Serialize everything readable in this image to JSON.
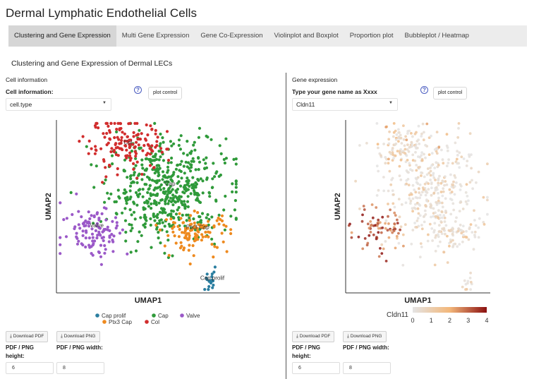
{
  "app": {
    "title": "Dermal Lymphatic Endothelial Cells"
  },
  "tabs": [
    {
      "label": "Clustering and Gene Expression",
      "active": true
    },
    {
      "label": "Multi Gene Expression",
      "active": false
    },
    {
      "label": "Gene Co-Expression",
      "active": false
    },
    {
      "label": "Violinplot and Boxplot",
      "active": false
    },
    {
      "label": "Proportion plot",
      "active": false
    },
    {
      "label": "Bubbleplot / Heatmap",
      "active": false
    }
  ],
  "section_title": "Clustering and Gene Expression of Dermal LECs",
  "left_panel": {
    "heading": "Cell information",
    "select_label": "Cell information:",
    "select_value": "cell.type",
    "help_symbol": "?",
    "plot_control_label": "plot control",
    "download_pdf": "Download PDF",
    "download_png": "Download PNG",
    "height_label": "PDF / PNG height:",
    "width_label": "PDF / PNG width:",
    "height_value": "6",
    "width_value": "8"
  },
  "right_panel": {
    "heading": "Gene expression",
    "select_label": "Type your gene name as Xxxx",
    "select_value": "Cldn11",
    "help_symbol": "?",
    "plot_control_label": "plot control",
    "download_pdf": "Download PDF",
    "download_png": "Download PNG",
    "height_label": "PDF / PNG height:",
    "width_label": "PDF / PNG width:",
    "height_value": "6",
    "width_value": "8"
  },
  "chart_data": [
    {
      "type": "scatter",
      "title": "",
      "xlabel": "UMAP1",
      "ylabel": "UMAP2",
      "xlim": [
        0,
        10
      ],
      "ylim": [
        0,
        10
      ],
      "legend_position": "bottom",
      "clusters": [
        {
          "name": "Cap prolif",
          "color": "#2a7ea0",
          "center": [
            8.4,
            0.6
          ],
          "spread": [
            0.25,
            0.3
          ],
          "count": 18,
          "label_pos": [
            8.5,
            0.75
          ]
        },
        {
          "name": "Cap",
          "color": "#2f9a3a",
          "center": [
            6.0,
            6.0
          ],
          "spread": [
            1.6,
            1.5
          ],
          "count": 520,
          "label_pos": [
            6.2,
            6.2
          ]
        },
        {
          "name": "Col",
          "color": "#d12d2d",
          "center": [
            3.8,
            8.5
          ],
          "spread": [
            1.1,
            0.7
          ],
          "count": 150,
          "label_pos": [
            3.9,
            8.6
          ]
        },
        {
          "name": "Ptx3 Cap",
          "color": "#ee8a1f",
          "center": [
            7.6,
            3.5
          ],
          "spread": [
            0.9,
            0.55
          ],
          "count": 110,
          "label_pos": [
            7.7,
            3.7
          ]
        },
        {
          "name": "Valve",
          "color": "#9b59c8",
          "center": [
            2.1,
            3.6
          ],
          "spread": [
            0.9,
            0.75
          ],
          "count": 110,
          "label_pos": [
            2.2,
            3.8
          ]
        }
      ]
    },
    {
      "type": "scatter",
      "title": "",
      "xlabel": "UMAP1",
      "ylabel": "UMAP2",
      "xlim": [
        0,
        10
      ],
      "ylim": [
        0,
        10
      ],
      "gene": "Cldn11",
      "colorbar": {
        "title": "Cldn11",
        "ticks": [
          0,
          1,
          2,
          3,
          4
        ],
        "min": 0,
        "max": 4,
        "low_color": "#e4e4e4",
        "mid_color": "#f3b77a",
        "high_color": "#8b1010"
      },
      "high_expression_region": "Valve cluster (left)"
    }
  ]
}
